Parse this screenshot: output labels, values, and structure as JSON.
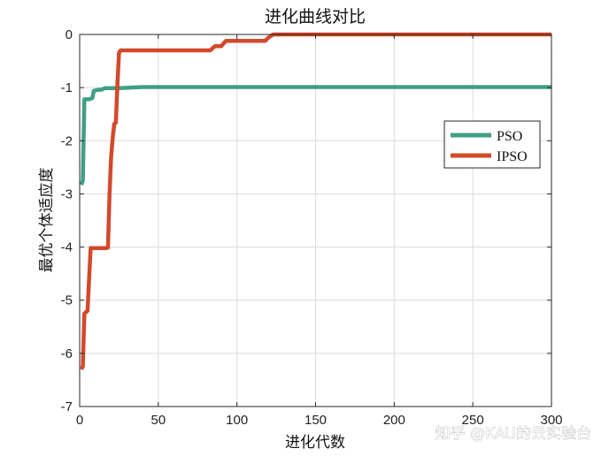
{
  "chart_data": {
    "type": "line",
    "title": "进化曲线对比",
    "xlabel": "进化代数",
    "ylabel": "最优个体适应度",
    "xlim": [
      0,
      300
    ],
    "ylim": [
      -7,
      0
    ],
    "xticks": [
      0,
      50,
      100,
      150,
      200,
      250,
      300
    ],
    "yticks": [
      0,
      -1,
      -2,
      -3,
      -4,
      -5,
      -6,
      -7
    ],
    "grid": true,
    "legend_position": "right",
    "series": [
      {
        "name": "PSO",
        "color": "#3f9f84",
        "points": [
          [
            1,
            -2.83
          ],
          [
            2,
            -2.75
          ],
          [
            3,
            -1.22
          ],
          [
            6,
            -1.22
          ],
          [
            8,
            -1.2
          ],
          [
            9,
            -1.06
          ],
          [
            12,
            -1.04
          ],
          [
            14,
            -1.04
          ],
          [
            16,
            -1.01
          ],
          [
            25,
            -1.01
          ],
          [
            40,
            -0.99
          ],
          [
            300,
            -0.99
          ]
        ]
      },
      {
        "name": "IPSO",
        "color": "#d2492a",
        "points": [
          [
            1,
            -6.3
          ],
          [
            2,
            -6.25
          ],
          [
            3,
            -5.25
          ],
          [
            5,
            -5.2
          ],
          [
            6,
            -4.6
          ],
          [
            7,
            -4.02
          ],
          [
            17,
            -4.02
          ],
          [
            18,
            -4.01
          ],
          [
            19,
            -3.0
          ],
          [
            20,
            -2.3
          ],
          [
            21,
            -1.95
          ],
          [
            22,
            -1.68
          ],
          [
            23,
            -1.66
          ],
          [
            24,
            -0.95
          ],
          [
            25,
            -0.35
          ],
          [
            26,
            -0.3
          ],
          [
            83,
            -0.3
          ],
          [
            86,
            -0.22
          ],
          [
            90,
            -0.22
          ],
          [
            93,
            -0.12
          ],
          [
            118,
            -0.12
          ],
          [
            120,
            -0.06
          ],
          [
            123,
            0.0
          ],
          [
            300,
            0.0
          ]
        ]
      }
    ]
  },
  "watermark": "知乎 @KAU的云实验台"
}
